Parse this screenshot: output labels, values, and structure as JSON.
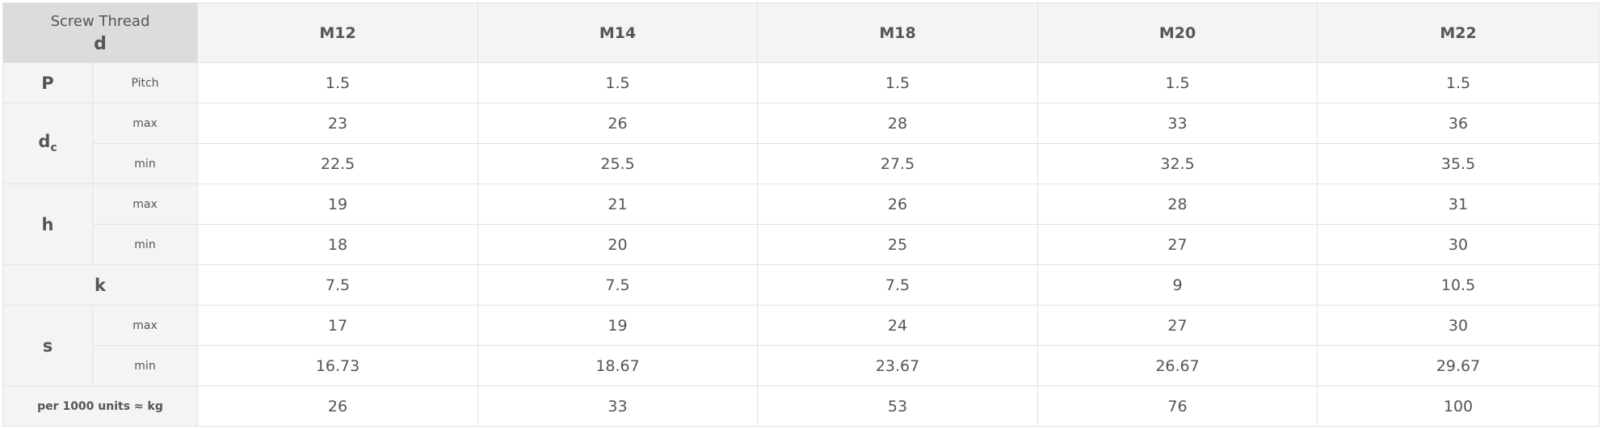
{
  "header": {
    "corner_line1": "Screw Thread",
    "corner_line2": "d",
    "sizes": [
      "M12",
      "M14",
      "M18",
      "M20",
      "M22"
    ]
  },
  "rows": {
    "P": {
      "symbol": "P",
      "sub": "Pitch",
      "values": [
        "1.5",
        "1.5",
        "1.5",
        "1.5",
        "1.5"
      ]
    },
    "dc_max": {
      "symbol": "d",
      "symbol_sub": "c",
      "sub": "max",
      "values": [
        "23",
        "26",
        "28",
        "33",
        "36"
      ]
    },
    "dc_min": {
      "sub": "min",
      "values": [
        "22.5",
        "25.5",
        "27.5",
        "32.5",
        "35.5"
      ]
    },
    "h_max": {
      "symbol": "h",
      "sub": "max",
      "values": [
        "19",
        "21",
        "26",
        "28",
        "31"
      ]
    },
    "h_min": {
      "sub": "min",
      "values": [
        "18",
        "20",
        "25",
        "27",
        "30"
      ]
    },
    "k": {
      "symbol": "k",
      "values": [
        "7.5",
        "7.5",
        "7.5",
        "9",
        "10.5"
      ]
    },
    "s_max": {
      "symbol": "s",
      "sub": "max",
      "values": [
        "17",
        "19",
        "24",
        "27",
        "30"
      ]
    },
    "s_min": {
      "sub": "min",
      "values": [
        "16.73",
        "18.67",
        "23.67",
        "26.67",
        "29.67"
      ]
    },
    "weight": {
      "label": "per 1000 units ≈ kg",
      "values": [
        "26",
        "33",
        "53",
        "76",
        "100"
      ]
    }
  }
}
